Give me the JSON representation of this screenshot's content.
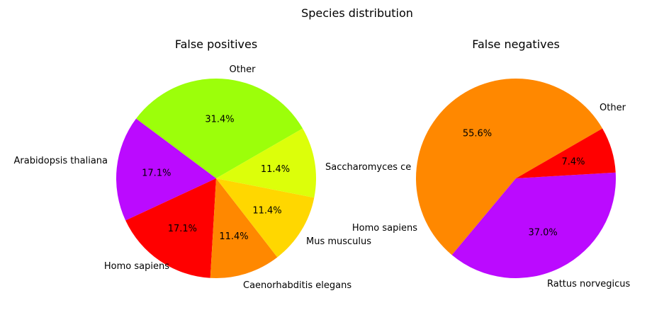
{
  "figure_title": "Species distribution",
  "chart_data": [
    {
      "type": "pie",
      "title": "False positives",
      "startangle_deg": 30,
      "counterclock": true,
      "slices": [
        {
          "label": "Other",
          "value": 31.4,
          "pct_label": "31.4%",
          "color": "#9cff0a"
        },
        {
          "label": "Arabidopsis thaliana",
          "value": 17.1,
          "pct_label": "17.1%",
          "color": "#bb0aff"
        },
        {
          "label": "Homo sapiens",
          "value": 17.1,
          "pct_label": "17.1%",
          "color": "#ff0000"
        },
        {
          "label": "Caenorhabditis elegans",
          "value": 11.4,
          "pct_label": "11.4%",
          "color": "#ff8800"
        },
        {
          "label": "Mus musculus",
          "value": 11.4,
          "pct_label": "11.4%",
          "color": "#ffd700"
        },
        {
          "label": "Saccharomyces ce",
          "value": 11.4,
          "pct_label": "11.4%",
          "color": "#dcff0a"
        }
      ]
    },
    {
      "type": "pie",
      "title": "False negatives",
      "startangle_deg": 30,
      "counterclock": true,
      "slices": [
        {
          "label": "Other",
          "value": 55.6,
          "pct_label": "55.6%",
          "color": "#ff8800"
        },
        {
          "label": "Homo sapiens",
          "value": 37.0,
          "pct_label": "37.0%",
          "color": "#bb0aff"
        },
        {
          "label": "Rattus norvegicus",
          "value": 7.4,
          "pct_label": "7.4%",
          "color": "#ff0000"
        }
      ]
    }
  ]
}
